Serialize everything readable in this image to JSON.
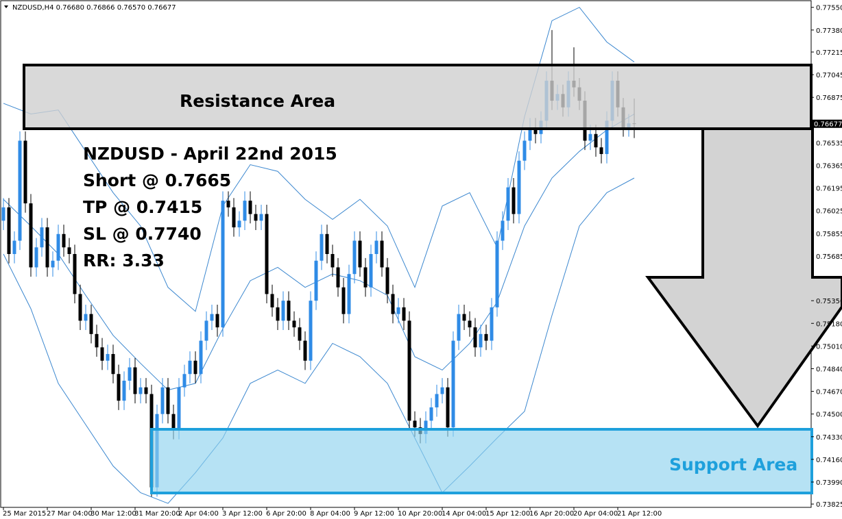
{
  "chart_data": {
    "type": "candlestick",
    "header": "NZDUSD,H4  0.76680 0.76866 0.76570 0.76677",
    "last_price": 0.76677,
    "categories": [
      "25 Mar 2015",
      null,
      null,
      null,
      null,
      null,
      null,
      null,
      "27 Mar 04:00",
      null,
      null,
      null,
      null,
      null,
      null,
      null,
      "30 Mar 12:00",
      null,
      null,
      null,
      null,
      null,
      null,
      null,
      "31 Mar 20:00",
      null,
      null,
      null,
      null,
      null,
      null,
      null,
      "2 Apr 04:00",
      null,
      null,
      null,
      null,
      null,
      null,
      null,
      "3 Apr 12:00",
      null,
      null,
      null,
      null,
      null,
      null,
      null,
      "6 Apr 20:00",
      null,
      null,
      null,
      null,
      null,
      null,
      null,
      "8 Apr 04:00",
      null,
      null,
      null,
      null,
      null,
      null,
      null,
      "9 Apr 12:00",
      null,
      null,
      null,
      null,
      null,
      null,
      null,
      "10 Apr 20:00",
      null,
      null,
      null,
      null,
      null,
      null,
      null,
      "14 Apr 04:00",
      null,
      null,
      null,
      null,
      null,
      null,
      null,
      "15 Apr 12:00",
      null,
      null,
      null,
      null,
      null,
      null,
      null,
      "16 Apr 20:00",
      null,
      null,
      null,
      null,
      null,
      null,
      null,
      "20 Apr 04:00",
      null,
      null,
      null,
      null,
      null,
      null,
      null,
      "21 Apr 12:00",
      null,
      null,
      null
    ],
    "open": [
      0.7595,
      0.7605,
      0.757,
      0.758,
      0.7655,
      0.7608,
      0.756,
      0.7575,
      0.759,
      0.756,
      0.7565,
      0.7585,
      0.7575,
      0.757,
      0.754,
      0.752,
      0.7525,
      0.751,
      0.75,
      0.749,
      0.7495,
      0.748,
      0.746,
      0.7475,
      0.7485,
      0.7465,
      0.747,
      0.7465,
      0.7395,
      0.745,
      0.747,
      0.745,
      0.7438,
      0.747,
      0.748,
      0.749,
      0.748,
      0.7505,
      0.752,
      0.7525,
      0.7515,
      0.761,
      0.7605,
      0.759,
      0.7595,
      0.761,
      0.76,
      0.7595,
      0.76,
      0.754,
      0.753,
      0.752,
      0.7535,
      0.752,
      0.7515,
      0.7505,
      0.749,
      0.7535,
      0.7565,
      0.7585,
      0.757,
      0.756,
      0.7545,
      0.7525,
      0.7555,
      0.758,
      0.756,
      0.7545,
      0.757,
      0.758,
      0.756,
      0.754,
      0.7525,
      0.753,
      0.752,
      0.7445,
      0.744,
      0.7435,
      0.7445,
      0.7455,
      0.7465,
      0.747,
      0.744,
      0.7505,
      0.7525,
      0.752,
      0.7515,
      0.75,
      0.751,
      0.7505,
      0.753,
      0.758,
      0.7595,
      0.762,
      0.76,
      0.764,
      0.7655,
      0.7665,
      0.766,
      0.767,
      0.77,
      0.7685,
      0.769,
      0.768,
      0.77,
      0.7695,
      0.7685,
      0.7655,
      0.766,
      0.765,
      0.7645,
      0.767,
      0.77,
      0.768,
      0.7665,
      0.7668
    ],
    "high": [
      0.7612,
      0.7612,
      0.7587,
      0.7662,
      0.7662,
      0.7615,
      0.7582,
      0.7597,
      0.7597,
      0.7572,
      0.7592,
      0.7592,
      0.7582,
      0.7577,
      0.7547,
      0.7532,
      0.7532,
      0.7517,
      0.7507,
      0.7502,
      0.7502,
      0.7487,
      0.7482,
      0.7492,
      0.7492,
      0.7477,
      0.7477,
      0.7472,
      0.7457,
      0.7477,
      0.7477,
      0.7457,
      0.7477,
      0.7487,
      0.7497,
      0.7497,
      0.7512,
      0.7527,
      0.7532,
      0.7532,
      0.7617,
      0.7617,
      0.7612,
      0.7602,
      0.7617,
      0.7617,
      0.7607,
      0.7607,
      0.7607,
      0.7547,
      0.7537,
      0.7542,
      0.7542,
      0.7527,
      0.7522,
      0.7512,
      0.7542,
      0.7572,
      0.7592,
      0.7592,
      0.7577,
      0.7567,
      0.7552,
      0.7562,
      0.7587,
      0.7587,
      0.7567,
      0.7577,
      0.7587,
      0.7587,
      0.7567,
      0.7547,
      0.7537,
      0.7537,
      0.7527,
      0.7452,
      0.7447,
      0.7452,
      0.7462,
      0.7472,
      0.7477,
      0.7477,
      0.7512,
      0.7532,
      0.7532,
      0.7527,
      0.7522,
      0.7517,
      0.7517,
      0.7537,
      0.7587,
      0.7602,
      0.7627,
      0.7627,
      0.7647,
      0.7662,
      0.7672,
      0.7672,
      0.7677,
      0.7707,
      0.7738,
      0.7697,
      0.7697,
      0.7707,
      0.7725,
      0.7702,
      0.7692,
      0.7667,
      0.7667,
      0.7657,
      0.7677,
      0.7707,
      0.7707,
      0.7687,
      0.7675,
      0.76866
    ],
    "low": [
      0.7588,
      0.7563,
      0.7563,
      0.7573,
      0.7601,
      0.7553,
      0.7553,
      0.7568,
      0.7553,
      0.7553,
      0.7558,
      0.7568,
      0.7563,
      0.7533,
      0.7513,
      0.7513,
      0.7503,
      0.7493,
      0.7483,
      0.7483,
      0.7473,
      0.7453,
      0.7453,
      0.7468,
      0.7458,
      0.7458,
      0.7458,
      0.7388,
      0.7388,
      0.7443,
      0.7443,
      0.7431,
      0.7431,
      0.7463,
      0.7473,
      0.7473,
      0.7473,
      0.7498,
      0.7513,
      0.7508,
      0.7508,
      0.7598,
      0.7583,
      0.7583,
      0.7588,
      0.7593,
      0.7588,
      0.7588,
      0.7533,
      0.7523,
      0.7513,
      0.7513,
      0.7513,
      0.7508,
      0.7498,
      0.7483,
      0.7483,
      0.7528,
      0.7558,
      0.7563,
      0.7553,
      0.7538,
      0.7518,
      0.7518,
      0.7548,
      0.7553,
      0.7538,
      0.7538,
      0.7563,
      0.7553,
      0.7533,
      0.7518,
      0.7518,
      0.7513,
      0.7438,
      0.7433,
      0.7428,
      0.7428,
      0.7438,
      0.7448,
      0.7458,
      0.7433,
      0.7433,
      0.7498,
      0.7513,
      0.7508,
      0.7493,
      0.7493,
      0.7498,
      0.7498,
      0.7523,
      0.7573,
      0.7588,
      0.7593,
      0.7593,
      0.7633,
      0.7648,
      0.7653,
      0.7653,
      0.7663,
      0.7678,
      0.7678,
      0.7673,
      0.7673,
      0.7688,
      0.7678,
      0.7648,
      0.7648,
      0.7643,
      0.7638,
      0.7638,
      0.7663,
      0.7673,
      0.7658,
      0.7658,
      0.7657
    ],
    "close": [
      0.7605,
      0.757,
      0.758,
      0.7655,
      0.7608,
      0.756,
      0.7575,
      0.759,
      0.756,
      0.7565,
      0.7585,
      0.7575,
      0.757,
      0.754,
      0.752,
      0.7525,
      0.751,
      0.75,
      0.749,
      0.7495,
      0.748,
      0.746,
      0.7475,
      0.7485,
      0.7465,
      0.747,
      0.7465,
      0.7395,
      0.745,
      0.747,
      0.745,
      0.7438,
      0.747,
      0.748,
      0.749,
      0.748,
      0.7505,
      0.752,
      0.7525,
      0.7515,
      0.761,
      0.7605,
      0.759,
      0.7595,
      0.761,
      0.76,
      0.7595,
      0.76,
      0.754,
      0.753,
      0.752,
      0.7535,
      0.752,
      0.7515,
      0.7505,
      0.749,
      0.7535,
      0.7565,
      0.7585,
      0.757,
      0.756,
      0.7545,
      0.7525,
      0.7555,
      0.758,
      0.756,
      0.7545,
      0.757,
      0.758,
      0.756,
      0.754,
      0.7525,
      0.753,
      0.752,
      0.7445,
      0.744,
      0.7435,
      0.7445,
      0.7455,
      0.7465,
      0.747,
      0.744,
      0.7505,
      0.7525,
      0.752,
      0.7515,
      0.75,
      0.751,
      0.7505,
      0.753,
      0.758,
      0.7595,
      0.762,
      0.76,
      0.764,
      0.7655,
      0.7665,
      0.766,
      0.767,
      0.77,
      0.7685,
      0.769,
      0.768,
      0.77,
      0.7695,
      0.7685,
      0.7655,
      0.766,
      0.765,
      0.7645,
      0.767,
      0.77,
      0.768,
      0.7665,
      0.7668,
      0.76677
    ],
    "up_color": "#2f8be6",
    "down_color": "#000000",
    "bands": [
      {
        "color": "#3b87cf",
        "x": [
          0,
          5,
          10,
          15,
          20,
          25,
          30,
          35,
          40,
          45,
          50,
          55,
          60,
          65,
          70,
          75,
          80,
          85,
          90,
          95,
          100,
          105,
          110,
          115
        ],
        "values": [
          0.7683,
          0.7675,
          0.7678,
          0.7647,
          0.7616,
          0.7591,
          0.7545,
          0.7527,
          0.7606,
          0.7637,
          0.7632,
          0.7611,
          0.7596,
          0.7611,
          0.7591,
          0.7545,
          0.7606,
          0.7616,
          0.7575,
          0.7673,
          0.7745,
          0.7755,
          0.7729,
          0.7714
        ]
      },
      {
        "color": "#3b87cf",
        "x": [
          0,
          5,
          10,
          15,
          20,
          25,
          30,
          35,
          40,
          45,
          50,
          55,
          60,
          65,
          70,
          75,
          80,
          85,
          90,
          95,
          100,
          105,
          110,
          115
        ],
        "values": [
          0.7611,
          0.7591,
          0.757,
          0.7539,
          0.7509,
          0.7488,
          0.7468,
          0.7473,
          0.7514,
          0.755,
          0.756,
          0.7545,
          0.7555,
          0.755,
          0.7539,
          0.7493,
          0.7483,
          0.7503,
          0.7534,
          0.7591,
          0.7627,
          0.7647,
          0.7663,
          0.7675
        ]
      },
      {
        "color": "#3b87cf",
        "x": [
          0,
          5,
          10,
          15,
          20,
          25,
          30,
          35,
          40,
          45,
          50,
          55,
          60,
          65,
          70,
          75,
          80,
          85,
          90,
          95,
          100,
          105,
          110,
          115
        ],
        "values": [
          0.757,
          0.7529,
          0.7473,
          0.7442,
          0.7411,
          0.7391,
          0.7383,
          0.7406,
          0.7432,
          0.7473,
          0.7483,
          0.7473,
          0.7503,
          0.7493,
          0.7473,
          0.7432,
          0.7391,
          0.7411,
          0.7432,
          0.7452,
          0.7524,
          0.7591,
          0.7616,
          0.7627
        ]
      }
    ],
    "ylim": [
      0.738,
      0.776
    ],
    "yticks": [
      {
        "value": 0.7755,
        "label": "0.77550"
      },
      {
        "value": 0.7738,
        "label": "0.77380"
      },
      0.77215,
      0.77045,
      0.76875,
      0.76535,
      0.76365,
      0.76195,
      0.76025,
      0.75855,
      0.75685,
      {
        "value": 0.7535,
        "label": "0.75350"
      },
      {
        "value": 0.7518,
        "label": "0.75180"
      },
      {
        "value": 0.7501,
        "label": "0.75010"
      },
      {
        "value": 0.7484,
        "label": "0.74840"
      },
      {
        "value": 0.7467,
        "label": "0.74670"
      },
      {
        "value": 0.745,
        "label": "0.74500"
      },
      {
        "value": 0.7433,
        "label": "0.74330"
      },
      {
        "value": 0.7416,
        "label": "0.74160"
      },
      {
        "value": 0.7399,
        "label": "0.73990"
      },
      0.73825
    ],
    "annotations": {
      "resistance": "Resistance Area",
      "title": "NZDUSD - April 22nd 2015",
      "short": "Short @ 0.7665",
      "tp": "TP @ 0.7415",
      "sl": "SL @ 0.7740",
      "rr": "RR: 3.33",
      "support": "Support Area"
    }
  }
}
